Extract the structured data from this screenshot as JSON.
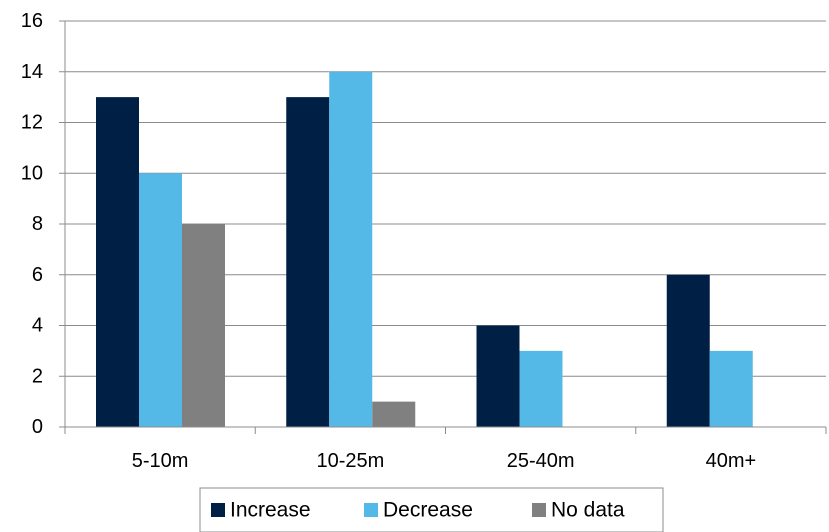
{
  "chart_data": {
    "type": "bar",
    "categories": [
      "5-10m",
      "10-25m",
      "25-40m",
      "40m+"
    ],
    "series": [
      {
        "name": "Increase",
        "values": [
          13,
          13,
          4,
          6
        ],
        "color": "#001f45"
      },
      {
        "name": "Decrease",
        "values": [
          10,
          14,
          3,
          3
        ],
        "color": "#55b9e8"
      },
      {
        "name": "No data",
        "values": [
          8,
          1,
          0,
          0
        ],
        "color": "#808080"
      }
    ],
    "ylim": [
      0,
      16
    ],
    "yticks": [
      "0",
      "2",
      "4",
      "6",
      "8",
      "10",
      "12",
      "14",
      "16"
    ],
    "grid": true,
    "legend_position": "bottom",
    "title": "",
    "xlabel": "",
    "ylabel": ""
  }
}
